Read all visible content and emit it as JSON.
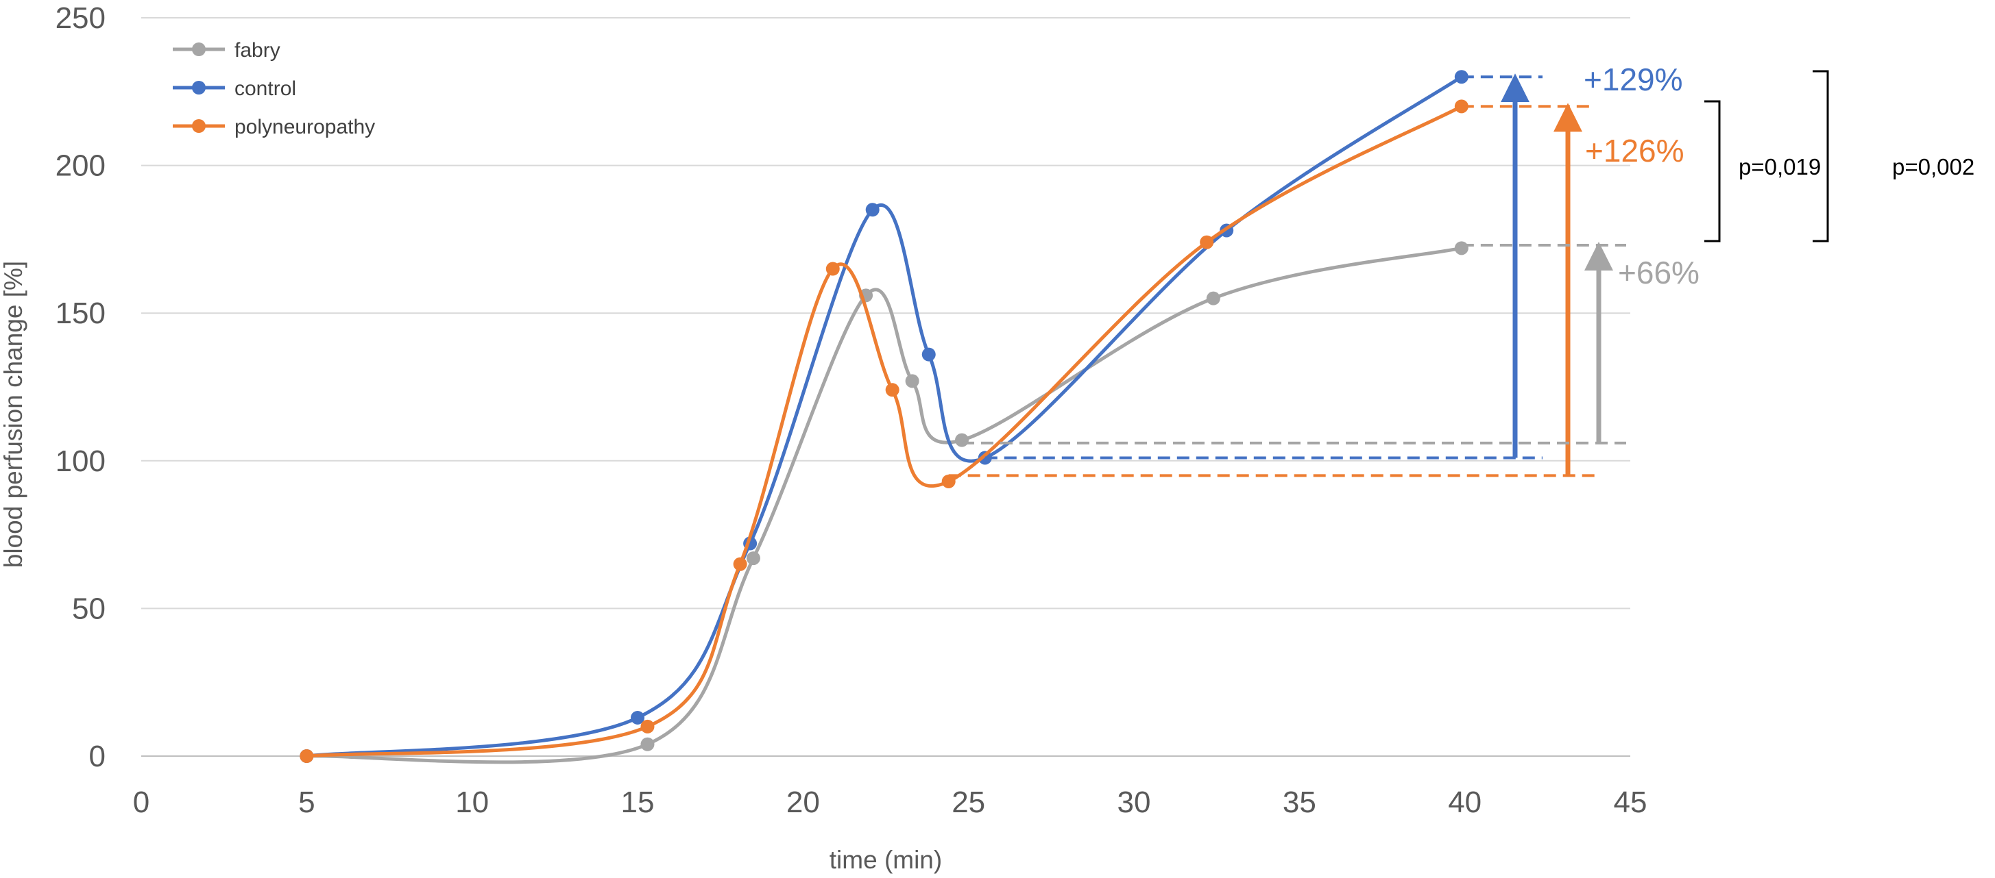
{
  "chart_data": {
    "type": "line",
    "title": "",
    "xlabel": "time (min)",
    "ylabel": "blood perfusion change [%]",
    "xlim": [
      0,
      45
    ],
    "ylim": [
      0,
      250
    ],
    "x_ticks": [
      0,
      5,
      10,
      15,
      20,
      25,
      30,
      35,
      40,
      45
    ],
    "y_ticks": [
      0,
      50,
      100,
      150,
      200,
      250
    ],
    "grid": "horizontal",
    "legend_position": "top-left",
    "series": [
      {
        "name": "fabry",
        "color": "#A5A5A5",
        "points": [
          {
            "x": 5,
            "y": 0
          },
          {
            "x": 15.3,
            "y": 4
          },
          {
            "x": 18.5,
            "y": 67
          },
          {
            "x": 21.9,
            "y": 156
          },
          {
            "x": 23.3,
            "y": 127
          },
          {
            "x": 24.8,
            "y": 107
          },
          {
            "x": 32.4,
            "y": 155
          },
          {
            "x": 39.9,
            "y": 172
          }
        ]
      },
      {
        "name": "control",
        "color": "#4472C4",
        "points": [
          {
            "x": 5,
            "y": 0
          },
          {
            "x": 15,
            "y": 13
          },
          {
            "x": 18.4,
            "y": 72
          },
          {
            "x": 22.1,
            "y": 185
          },
          {
            "x": 23.8,
            "y": 136
          },
          {
            "x": 25.5,
            "y": 101
          },
          {
            "x": 32.8,
            "y": 178
          },
          {
            "x": 39.9,
            "y": 230
          }
        ]
      },
      {
        "name": "polyneuropathy",
        "color": "#ED7D31",
        "points": [
          {
            "x": 5,
            "y": 0
          },
          {
            "x": 15.3,
            "y": 10
          },
          {
            "x": 18.1,
            "y": 65
          },
          {
            "x": 20.9,
            "y": 165
          },
          {
            "x": 22.7,
            "y": 124
          },
          {
            "x": 24.4,
            "y": 93
          },
          {
            "x": 32.2,
            "y": 174
          },
          {
            "x": 39.9,
            "y": 220
          }
        ]
      }
    ],
    "annotations": [
      {
        "series": "control",
        "label": "+129%",
        "from_y": 101,
        "to_y": 230,
        "color": "#4472C4"
      },
      {
        "series": "polyneuropathy",
        "label": "+126%",
        "from_y": 95,
        "to_y": 220,
        "color": "#ED7D31"
      },
      {
        "series": "fabry",
        "label": "+66%",
        "from_y": 106,
        "to_y": 173,
        "color": "#A5A5A5"
      }
    ],
    "comparisons": [
      {
        "label": "p=0,019"
      },
      {
        "label": "p=0,002"
      }
    ]
  }
}
